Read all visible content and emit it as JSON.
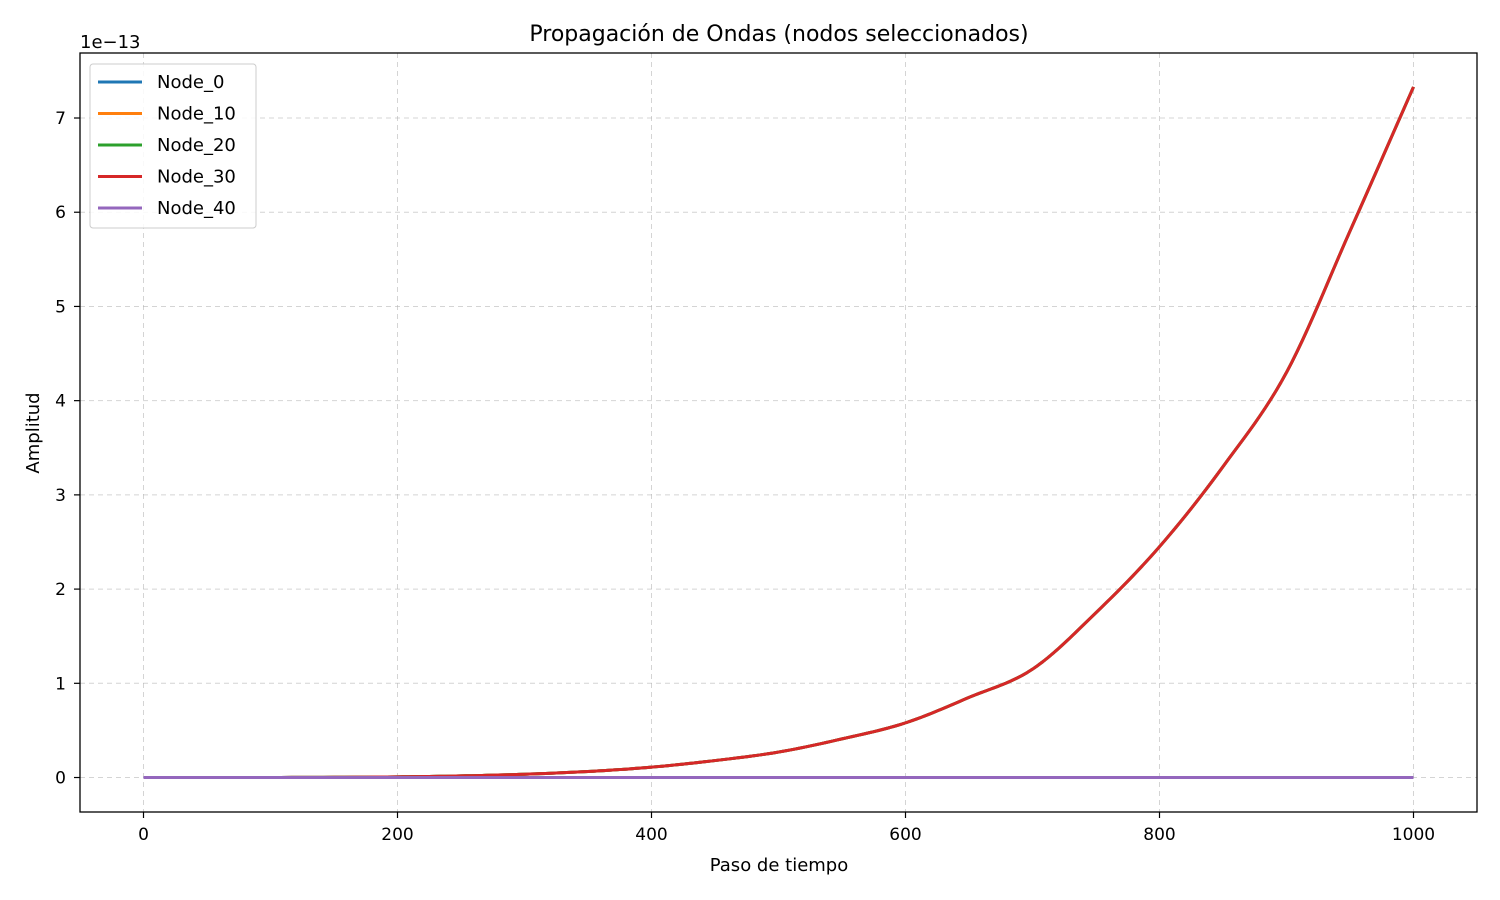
{
  "chart_data": {
    "type": "line",
    "title": "Propagación de Ondas (nodos seleccionados)",
    "xlabel": "Paso de tiempo",
    "ylabel": "Amplitud",
    "offset_text": "1e−13",
    "xlim": [
      -50,
      1050
    ],
    "ylim": [
      -0.366,
      7.69
    ],
    "x_ticks": [
      0,
      200,
      400,
      600,
      800,
      1000
    ],
    "x_tick_labels": [
      "0",
      "200",
      "400",
      "600",
      "800",
      "1000"
    ],
    "y_ticks": [
      0,
      1,
      2,
      3,
      4,
      5,
      6,
      7
    ],
    "y_tick_labels": [
      "0",
      "1",
      "2",
      "3",
      "4",
      "5",
      "6",
      "7"
    ],
    "y_scale_note": "values in units of 1e-13",
    "grid": true,
    "legend_position": "upper-left",
    "x": [
      0,
      100,
      200,
      250,
      300,
      350,
      400,
      450,
      500,
      550,
      600,
      650,
      700,
      750,
      800,
      850,
      900,
      950,
      1000
    ],
    "series": [
      {
        "name": "Node_0",
        "color": "#1f77b4",
        "values": [
          0,
          0.0005,
          0.007,
          0.017,
          0.035,
          0.064,
          0.11,
          0.18,
          0.27,
          0.41,
          0.58,
          0.85,
          1.15,
          1.75,
          2.45,
          3.3,
          4.3,
          5.8,
          7.33
        ]
      },
      {
        "name": "Node_10",
        "color": "#ff7f0e",
        "values": [
          0,
          0.0005,
          0.007,
          0.017,
          0.035,
          0.064,
          0.11,
          0.18,
          0.27,
          0.41,
          0.58,
          0.85,
          1.15,
          1.75,
          2.45,
          3.3,
          4.3,
          5.8,
          7.33
        ]
      },
      {
        "name": "Node_20",
        "color": "#2ca02c",
        "values": [
          0,
          0.0005,
          0.007,
          0.017,
          0.035,
          0.064,
          0.11,
          0.18,
          0.27,
          0.41,
          0.58,
          0.85,
          1.15,
          1.75,
          2.45,
          3.3,
          4.3,
          5.8,
          7.33
        ]
      },
      {
        "name": "Node_30",
        "color": "#d62728",
        "values": [
          0,
          0.0005,
          0.007,
          0.017,
          0.035,
          0.064,
          0.11,
          0.18,
          0.27,
          0.41,
          0.58,
          0.85,
          1.15,
          1.75,
          2.45,
          3.3,
          4.3,
          5.8,
          7.33
        ]
      },
      {
        "name": "Node_40",
        "color": "#9467bd",
        "values": [
          0,
          0,
          0,
          0,
          0,
          0,
          0,
          0,
          0,
          0,
          0,
          0,
          0,
          0,
          0,
          0,
          0,
          0,
          0
        ]
      }
    ]
  }
}
